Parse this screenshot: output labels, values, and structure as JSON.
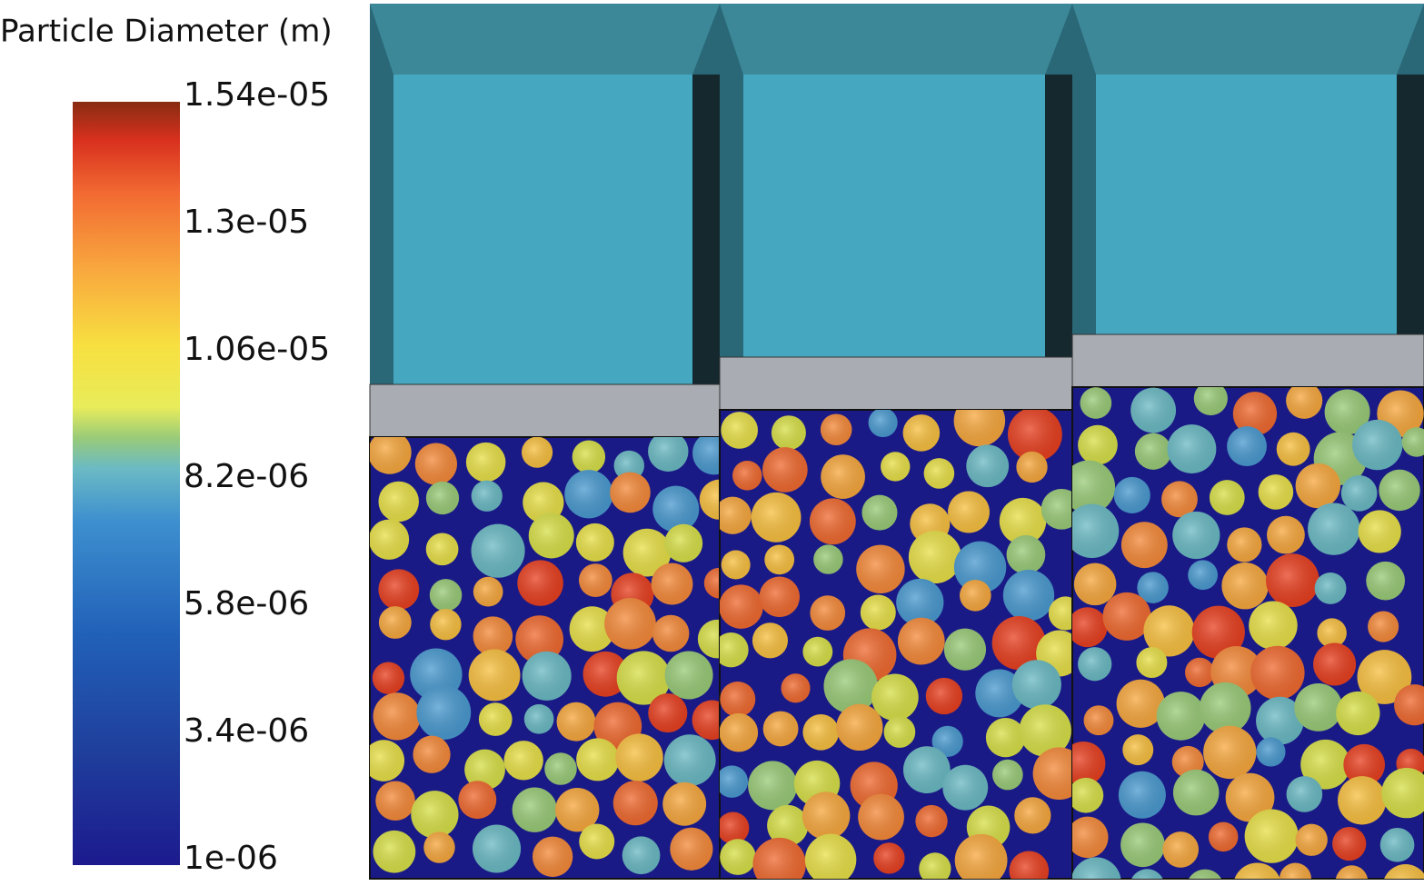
{
  "legend": {
    "title": "Particle Diameter (m)",
    "labels": [
      "1.54e-05",
      "1.3e-05",
      "1.06e-05",
      "8.2e-06",
      "5.8e-06",
      "3.4e-06",
      "1e-06"
    ]
  }
}
